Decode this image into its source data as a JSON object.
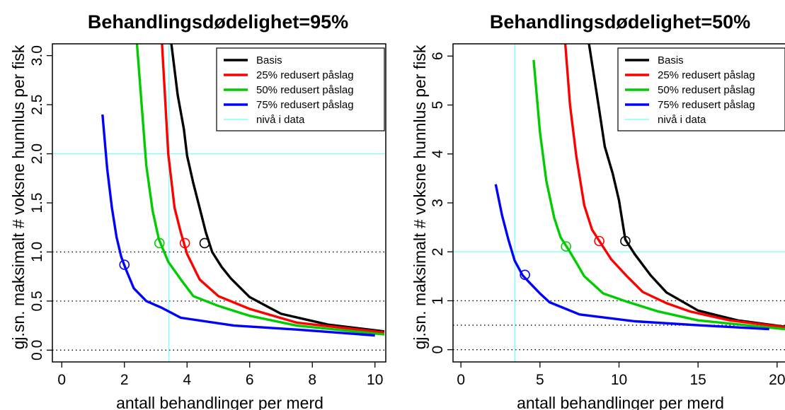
{
  "chart_data": [
    {
      "type": "line",
      "title": "Behandlingsdødelighet=95%",
      "xlabel": "antall behandlinger per merd",
      "ylabel": "gj.sn. maksimalt # voksne hunnlus per fisk",
      "xlim": [
        -0.3,
        10.3
      ],
      "ylim": [
        -0.12,
        3.12
      ],
      "xticks": [
        "0",
        "2",
        "4",
        "6",
        "8",
        "10"
      ],
      "xtick_values": [
        0,
        2,
        4,
        6,
        8,
        10
      ],
      "yticks": [
        "0.0",
        "0.5",
        "1.0",
        "1.5",
        "2.0",
        "2.5",
        "3.0"
      ],
      "ytick_values": [
        0,
        0.5,
        1,
        1.5,
        2,
        2.5,
        3
      ],
      "hlines_dotted": [
        0,
        0.5,
        1.0
      ],
      "data_level": {
        "x": 3.42,
        "y": 2.0
      },
      "legend_position": "top-right",
      "series": [
        {
          "name": "Basis",
          "color": "#000000",
          "x": [
            3.5,
            3.7,
            3.9,
            4.0,
            4.2,
            4.4,
            4.6,
            4.8,
            5.1,
            5.4,
            6.0,
            7.0,
            8.5,
            10.3
          ],
          "y": [
            3.12,
            2.6,
            2.25,
            1.98,
            1.7,
            1.45,
            1.2,
            1.0,
            0.85,
            0.73,
            0.54,
            0.37,
            0.26,
            0.19
          ],
          "marker": {
            "x": 4.56,
            "y": 1.09
          }
        },
        {
          "name": "25% redusert påslag",
          "color": "#ff0000",
          "x": [
            3.2,
            3.4,
            3.6,
            3.8,
            4.0,
            4.4,
            5.0,
            6.0,
            7.5,
            10.3
          ],
          "y": [
            3.12,
            2.0,
            1.45,
            1.2,
            0.98,
            0.72,
            0.55,
            0.42,
            0.28,
            0.18
          ],
          "marker": {
            "x": 3.93,
            "y": 1.09
          }
        },
        {
          "name": "50% redusert påslag",
          "color": "#00cc00",
          "x": [
            2.4,
            2.55,
            2.7,
            2.9,
            3.1,
            3.4,
            3.8,
            4.2,
            5.0,
            6.0,
            7.5,
            10.3
          ],
          "y": [
            3.12,
            2.5,
            1.88,
            1.42,
            1.13,
            0.9,
            0.72,
            0.55,
            0.45,
            0.35,
            0.25,
            0.16
          ],
          "marker": {
            "x": 3.12,
            "y": 1.09
          }
        },
        {
          "name": "75% redusert påslag",
          "color": "#0000ff",
          "x": [
            1.3,
            1.45,
            1.6,
            1.75,
            1.9,
            2.05,
            2.3,
            2.7,
            3.2,
            3.8,
            5.5,
            7.5,
            10.0
          ],
          "y": [
            2.4,
            1.85,
            1.45,
            1.15,
            0.95,
            0.82,
            0.63,
            0.5,
            0.43,
            0.33,
            0.25,
            0.21,
            0.15
          ],
          "marker": {
            "x": 2.0,
            "y": 0.87
          }
        },
        {
          "name": "nivå i data",
          "color": "#7fffff",
          "style": "reference"
        }
      ]
    },
    {
      "type": "line",
      "title": "Behandlingsdødelighet=50%",
      "xlabel": "antall behandlinger per merd",
      "ylabel": "gj.sn. maksimalt # voksne hunnlus per fisk",
      "xlim": [
        -0.5,
        20.5
      ],
      "ylim": [
        -0.25,
        6.25
      ],
      "xticks": [
        "0",
        "5",
        "10",
        "15",
        "20"
      ],
      "xtick_values": [
        0,
        5,
        10,
        15,
        20
      ],
      "yticks": [
        "0",
        "1",
        "2",
        "3",
        "4",
        "5",
        "6"
      ],
      "ytick_values": [
        0,
        1,
        2,
        3,
        4,
        5,
        6
      ],
      "hlines_dotted": [
        0,
        0.5,
        1.0
      ],
      "data_level": {
        "x": 3.42,
        "y": 2.0
      },
      "legend_position": "top-right",
      "series": [
        {
          "name": "Basis",
          "color": "#000000",
          "x": [
            8.1,
            8.7,
            9.1,
            9.6,
            10.0,
            10.4,
            11.0,
            12.0,
            13.0,
            15.0,
            17.5,
            20.5
          ],
          "y": [
            6.25,
            5.0,
            4.15,
            3.6,
            3.05,
            2.25,
            1.95,
            1.52,
            1.17,
            0.8,
            0.6,
            0.47
          ],
          "marker": {
            "x": 10.4,
            "y": 2.22
          }
        },
        {
          "name": "25% redusert påslag",
          "color": "#ff0000",
          "x": [
            6.6,
            6.9,
            7.3,
            7.8,
            8.3,
            8.8,
            9.5,
            10.5,
            11.5,
            13.0,
            14.5,
            17.0,
            20.5
          ],
          "y": [
            6.25,
            5.0,
            3.95,
            2.95,
            2.45,
            2.2,
            1.85,
            1.5,
            1.18,
            0.95,
            0.78,
            0.6,
            0.46
          ],
          "marker": {
            "x": 8.75,
            "y": 2.22
          }
        },
        {
          "name": "50% redusert påslag",
          "color": "#00cc00",
          "x": [
            4.6,
            5.0,
            5.4,
            5.9,
            6.3,
            6.8,
            7.3,
            7.8,
            9.0,
            10.5,
            12.5,
            15.0,
            20.5
          ],
          "y": [
            5.92,
            4.45,
            3.45,
            2.7,
            2.3,
            2.05,
            1.78,
            1.5,
            1.15,
            0.98,
            0.78,
            0.6,
            0.42
          ],
          "marker": {
            "x": 6.65,
            "y": 2.11
          }
        },
        {
          "name": "75% redusert påslag",
          "color": "#0000ff",
          "x": [
            2.2,
            2.6,
            3.0,
            3.4,
            3.9,
            4.4,
            5.0,
            5.6,
            7.5,
            11.0,
            15.0,
            19.5
          ],
          "y": [
            3.38,
            2.75,
            2.25,
            1.82,
            1.52,
            1.35,
            1.15,
            0.97,
            0.72,
            0.58,
            0.5,
            0.42
          ],
          "marker": {
            "x": 4.05,
            "y": 1.53
          }
        },
        {
          "name": "nivå i data",
          "color": "#7fffff",
          "style": "reference"
        }
      ]
    }
  ]
}
